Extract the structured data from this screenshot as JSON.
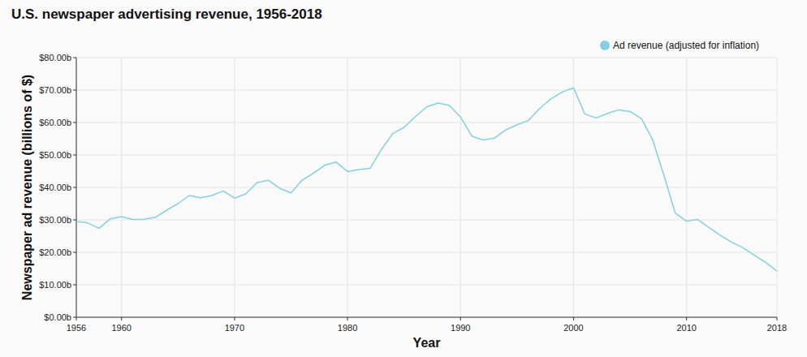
{
  "chart_data": {
    "type": "line",
    "title": "U.S. newspaper advertising revenue, 1956-2018",
    "x_label": "Year",
    "y_label": "Newspaper ad revenue (billions of $)",
    "x": [
      1956,
      1957,
      1958,
      1959,
      1960,
      1961,
      1962,
      1963,
      1964,
      1965,
      1966,
      1967,
      1968,
      1969,
      1970,
      1971,
      1972,
      1973,
      1974,
      1975,
      1976,
      1977,
      1978,
      1979,
      1980,
      1981,
      1982,
      1983,
      1984,
      1985,
      1986,
      1987,
      1988,
      1989,
      1990,
      1991,
      1992,
      1993,
      1994,
      1995,
      1996,
      1997,
      1998,
      1999,
      2000,
      2001,
      2002,
      2003,
      2004,
      2005,
      2006,
      2007,
      2008,
      2009,
      2010,
      2011,
      2012,
      2013,
      2014,
      2015,
      2016,
      2017,
      2018
    ],
    "series": [
      {
        "name": "Ad revenue (adjusted for inflation)",
        "color": "#86cfe0",
        "values": [
          29.5,
          29.1,
          27.4,
          30.3,
          31.0,
          30.1,
          30.2,
          30.8,
          33.0,
          35.0,
          37.5,
          36.8,
          37.5,
          38.9,
          36.7,
          38.0,
          41.5,
          42.2,
          39.7,
          38.3,
          42.3,
          44.4,
          46.9,
          47.8,
          44.9,
          45.5,
          45.9,
          51.7,
          56.6,
          58.5,
          61.8,
          64.8,
          66.0,
          65.3,
          61.7,
          55.8,
          54.6,
          55.2,
          57.7,
          59.3,
          60.6,
          64.3,
          67.3,
          69.4,
          70.7,
          62.6,
          61.4,
          62.8,
          63.9,
          63.4,
          61.2,
          54.7,
          43.7,
          32.1,
          29.6,
          30.1,
          27.6,
          25.2,
          23.1,
          21.4,
          19.1,
          16.9,
          14.2
        ]
      }
    ],
    "xlim": [
      1956,
      2018
    ],
    "xticks": [
      1956,
      1960,
      1970,
      1980,
      1990,
      2000,
      2010,
      2018
    ],
    "ylim": [
      0,
      80
    ],
    "yticks": [
      {
        "value": 0,
        "label": "$0.00b"
      },
      {
        "value": 10,
        "label": "$10.00b"
      },
      {
        "value": 20,
        "label": "$20.00b"
      },
      {
        "value": 30,
        "label": "$30.00b"
      },
      {
        "value": 40,
        "label": "$40.00b"
      },
      {
        "value": 50,
        "label": "$50.00b"
      },
      {
        "value": 60,
        "label": "$60.00b"
      },
      {
        "value": 70,
        "label": "$70.00b"
      },
      {
        "value": 80,
        "label": "$80.00b"
      }
    ],
    "grid": true,
    "legend": "top-right"
  }
}
